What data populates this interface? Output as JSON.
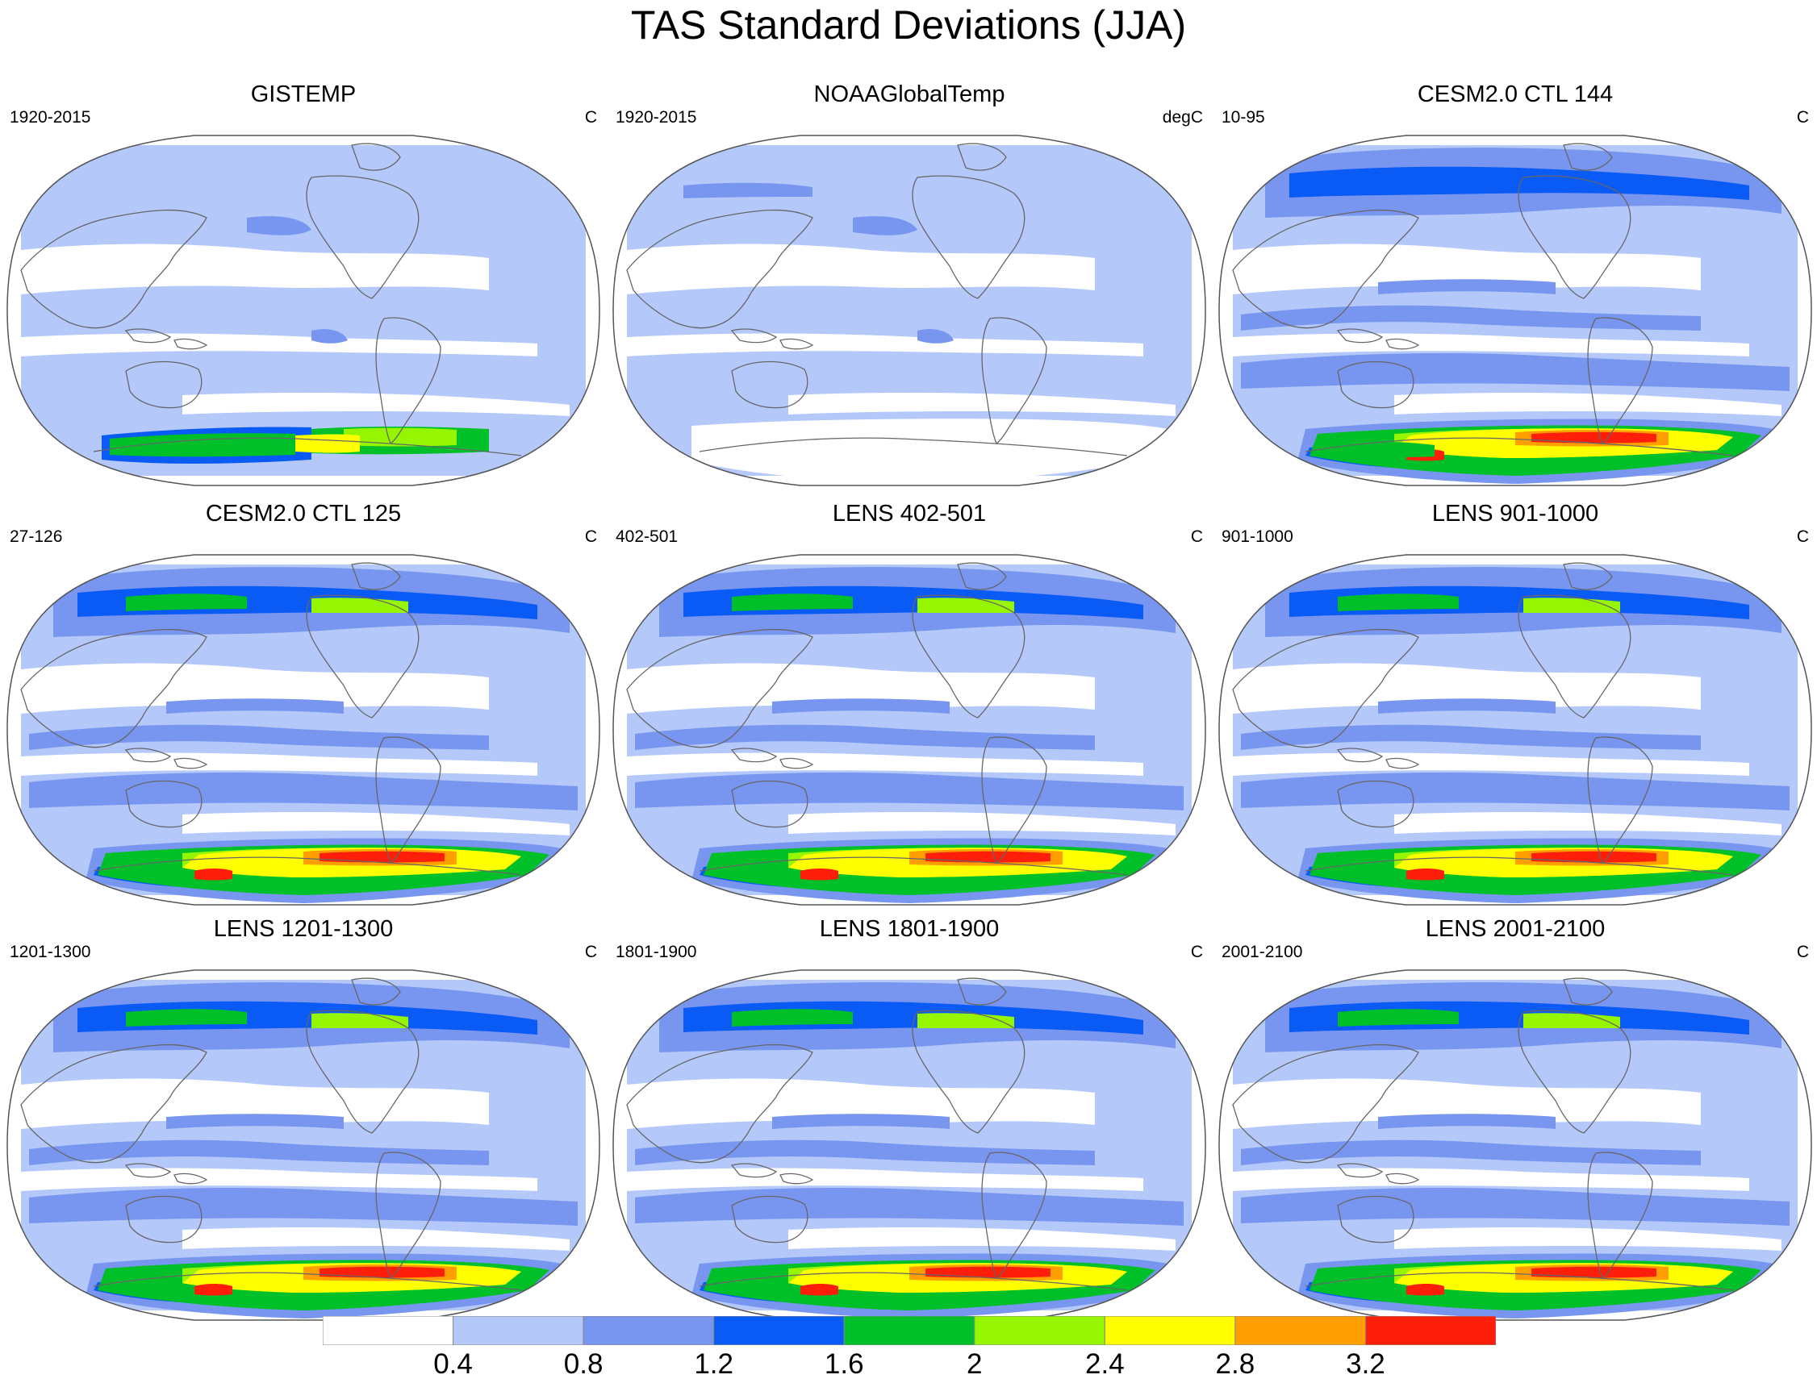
{
  "figure": {
    "title": "TAS Standard Deviations (JJA)"
  },
  "panels": [
    {
      "title": "GISTEMP",
      "period": "1920-2015",
      "units": "C",
      "style": "obs_gis"
    },
    {
      "title": "NOAAGlobalTemp",
      "period": "1920-2015",
      "units": "degC",
      "style": "obs_noaa"
    },
    {
      "title": "CESM2.0 CTL 144",
      "period": "10-95",
      "units": "C",
      "style": "model_a"
    },
    {
      "title": "CESM2.0 CTL 125",
      "period": "27-126",
      "units": "C",
      "style": "model_b"
    },
    {
      "title": "LENS 402-501",
      "period": "402-501",
      "units": "C",
      "style": "lens"
    },
    {
      "title": "LENS 901-1000",
      "period": "901-1000",
      "units": "C",
      "style": "lens"
    },
    {
      "title": "LENS 1201-1300",
      "period": "1201-1300",
      "units": "C",
      "style": "lens"
    },
    {
      "title": "LENS 1801-1900",
      "period": "1801-1900",
      "units": "C",
      "style": "lens"
    },
    {
      "title": "LENS 2001-2100",
      "period": "2001-2100",
      "units": "C",
      "style": "lens"
    }
  ],
  "colorbar": {
    "labels": [
      "0.4",
      "0.8",
      "1.2",
      "1.6",
      "2",
      "2.4",
      "2.8",
      "3.2"
    ],
    "colors": [
      "#ffffff",
      "#b4c8fa",
      "#7896f0",
      "#0a5af5",
      "#00c02a",
      "#96f500",
      "#ffff00",
      "#ffa000",
      "#ff1e0a"
    ]
  }
}
